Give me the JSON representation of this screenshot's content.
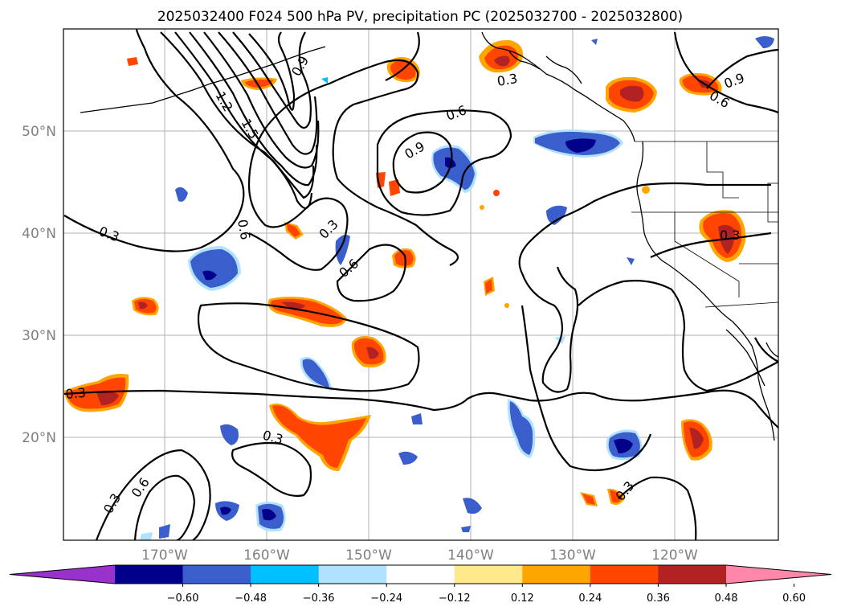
{
  "title": "2025032400 F024 500 hPa PV, precipitation PC (2025032700 - 2025032800)",
  "lat_labels": [
    "50°N",
    "40°N",
    "30°N",
    "20°N"
  ],
  "lon_labels": [
    "170°W",
    "160°W",
    "150°W",
    "140°W",
    "130°W",
    "120°W"
  ],
  "colorbar": {
    "ticks": [
      "−0.60",
      "−0.48",
      "−0.36",
      "−0.24",
      "−0.12",
      "0.12",
      "0.24",
      "0.36",
      "0.48",
      "0.60"
    ],
    "colors": [
      "#9932cc",
      "#00008b",
      "#3a5fcd",
      "#00bfff",
      "#b0e2ff",
      "#ffffff",
      "#ffe98a",
      "#ffa500",
      "#ff4500",
      "#b22222",
      "#ff88aa"
    ]
  },
  "contour_labels": [
    "0.3",
    "0.6",
    "0.9",
    "1.2",
    "1.5"
  ],
  "colors": {
    "orange_red": "#ff4500",
    "dark_red": "#b22222",
    "orange": "#ffa500",
    "yellow": "#ffe98a",
    "royal_blue": "#3a5fcd",
    "navy": "#00008b",
    "sky_blue": "#00bfff",
    "light_blue": "#b0e2ff"
  }
}
